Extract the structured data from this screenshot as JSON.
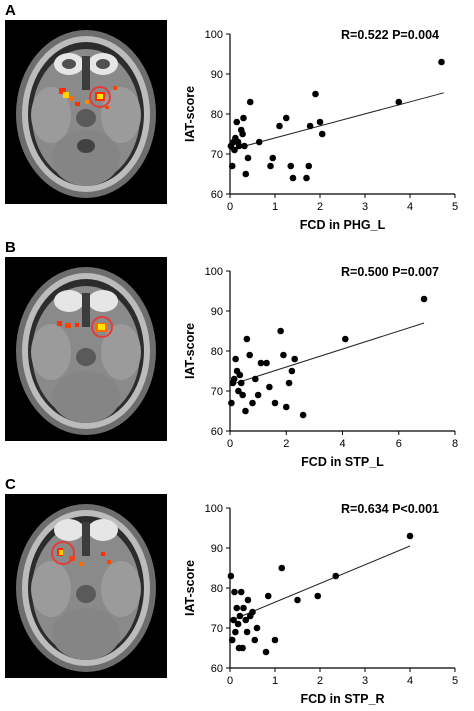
{
  "panels": [
    {
      "letter": "A"
    },
    {
      "letter": "B"
    },
    {
      "letter": "C"
    }
  ],
  "chart_data": [
    {
      "type": "scatter",
      "title": "R=0.522  P=0.004",
      "xlabel": "FCD in PHG_L",
      "ylabel": "IAT-score",
      "xlim": [
        0,
        5
      ],
      "ylim": [
        60,
        100
      ],
      "xticks": [
        0,
        1,
        2,
        3,
        4,
        5
      ],
      "yticks": [
        60,
        70,
        80,
        90,
        100
      ],
      "points": [
        [
          0.02,
          72
        ],
        [
          0.05,
          67
        ],
        [
          0.08,
          73
        ],
        [
          0.1,
          71
        ],
        [
          0.12,
          74
        ],
        [
          0.15,
          78
        ],
        [
          0.18,
          73
        ],
        [
          0.2,
          72
        ],
        [
          0.25,
          76
        ],
        [
          0.28,
          75
        ],
        [
          0.3,
          79
        ],
        [
          0.32,
          72
        ],
        [
          0.35,
          65
        ],
        [
          0.4,
          69
        ],
        [
          0.45,
          83
        ],
        [
          0.65,
          73
        ],
        [
          0.9,
          67
        ],
        [
          0.95,
          69
        ],
        [
          1.1,
          77
        ],
        [
          1.25,
          79
        ],
        [
          1.35,
          67
        ],
        [
          1.4,
          64
        ],
        [
          1.7,
          64
        ],
        [
          1.75,
          67
        ],
        [
          1.78,
          77
        ],
        [
          1.9,
          85
        ],
        [
          2.0,
          78
        ],
        [
          2.05,
          75
        ],
        [
          3.75,
          83
        ],
        [
          4.7,
          93
        ]
      ],
      "trend": [
        [
          0.0,
          71.0
        ],
        [
          4.75,
          85.3
        ]
      ]
    },
    {
      "type": "scatter",
      "title": "R=0.500  P=0.007",
      "xlabel": "FCD in STP_L",
      "ylabel": "IAT-score",
      "xlim": [
        0,
        8
      ],
      "ylim": [
        60,
        100
      ],
      "xticks": [
        0,
        2,
        4,
        6,
        8
      ],
      "yticks": [
        60,
        70,
        80,
        90,
        100
      ],
      "points": [
        [
          0.05,
          67
        ],
        [
          0.1,
          72
        ],
        [
          0.15,
          73
        ],
        [
          0.2,
          78
        ],
        [
          0.25,
          75
        ],
        [
          0.3,
          70
        ],
        [
          0.35,
          74
        ],
        [
          0.4,
          72
        ],
        [
          0.45,
          69
        ],
        [
          0.55,
          65
        ],
        [
          0.6,
          83
        ],
        [
          0.7,
          79
        ],
        [
          0.8,
          67
        ],
        [
          0.9,
          73
        ],
        [
          1.0,
          69
        ],
        [
          1.1,
          77
        ],
        [
          1.3,
          77
        ],
        [
          1.4,
          71
        ],
        [
          1.6,
          67
        ],
        [
          1.8,
          85
        ],
        [
          1.9,
          79
        ],
        [
          2.0,
          66
        ],
        [
          2.1,
          72
        ],
        [
          2.2,
          75
        ],
        [
          2.3,
          78
        ],
        [
          2.6,
          64
        ],
        [
          4.1,
          83
        ],
        [
          6.9,
          93
        ]
      ],
      "trend": [
        [
          0.0,
          71.5
        ],
        [
          6.9,
          87.0
        ]
      ]
    },
    {
      "type": "scatter",
      "title": "R=0.634  P<0.001",
      "xlabel": "FCD in STP_R",
      "ylabel": "IAT-score",
      "xlim": [
        0,
        5
      ],
      "ylim": [
        60,
        100
      ],
      "xticks": [
        0,
        1,
        2,
        3,
        4,
        5
      ],
      "yticks": [
        60,
        70,
        80,
        90,
        100
      ],
      "points": [
        [
          0.02,
          83
        ],
        [
          0.05,
          67
        ],
        [
          0.08,
          72
        ],
        [
          0.1,
          79
        ],
        [
          0.12,
          69
        ],
        [
          0.15,
          75
        ],
        [
          0.18,
          71
        ],
        [
          0.2,
          65
        ],
        [
          0.22,
          73
        ],
        [
          0.25,
          79
        ],
        [
          0.28,
          65
        ],
        [
          0.3,
          75
        ],
        [
          0.35,
          72
        ],
        [
          0.38,
          69
        ],
        [
          0.4,
          77
        ],
        [
          0.45,
          73
        ],
        [
          0.5,
          74
        ],
        [
          0.55,
          67
        ],
        [
          0.6,
          70
        ],
        [
          0.8,
          64
        ],
        [
          0.85,
          78
        ],
        [
          1.0,
          67
        ],
        [
          1.15,
          85
        ],
        [
          1.5,
          77
        ],
        [
          1.95,
          78
        ],
        [
          2.35,
          83
        ],
        [
          4.0,
          93
        ]
      ],
      "trend": [
        [
          0.05,
          72.0
        ],
        [
          4.0,
          90.5
        ]
      ]
    }
  ]
}
